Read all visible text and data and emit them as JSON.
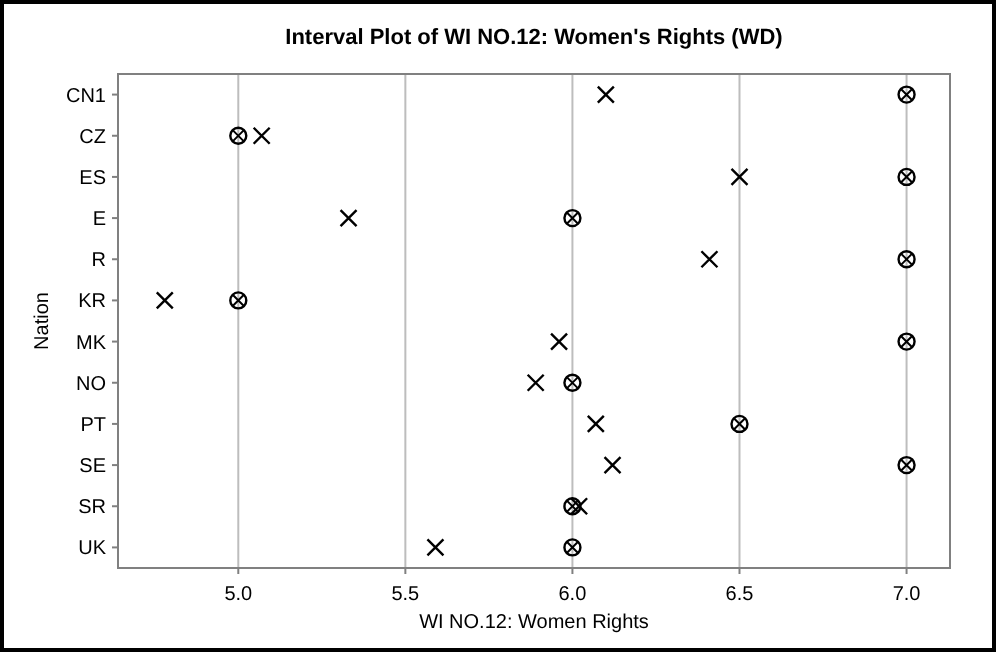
{
  "chart_data": {
    "type": "scatter",
    "orientation": "horizontal",
    "title": "Interval Plot of WI NO.12: Women's Rights (WD)",
    "xlabel": "WI NO.12: Women Rights",
    "ylabel": "Nation",
    "categories": [
      "CN1",
      "CZ",
      "ES",
      "E",
      "R",
      "KR",
      "MK",
      "NO",
      "PT",
      "SE",
      "SR",
      "UK"
    ],
    "series": [
      {
        "color": "#000000",
        "marker": "cross",
        "values": [
          6.1,
          5.07,
          6.5,
          5.33,
          6.41,
          4.78,
          5.96,
          5.89,
          6.07,
          6.12,
          6.02,
          5.59
        ]
      },
      {
        "color": "#000000",
        "marker": "circle",
        "values": [
          7.0,
          5.0,
          7.0,
          6.0,
          7.0,
          5.0,
          7.0,
          6.0,
          6.5,
          7.0,
          6.0,
          6.0
        ]
      }
    ],
    "xlim": [
      4.64,
      7.13
    ],
    "xticks": [
      {
        "value": 5,
        "label": "5.0"
      },
      {
        "value": 5.5,
        "label": "5.5"
      },
      {
        "value": 6,
        "label": "6.0"
      },
      {
        "value": 6.5,
        "label": "6.5"
      },
      {
        "value": 7,
        "label": "7.0"
      }
    ],
    "grid": "x"
  }
}
